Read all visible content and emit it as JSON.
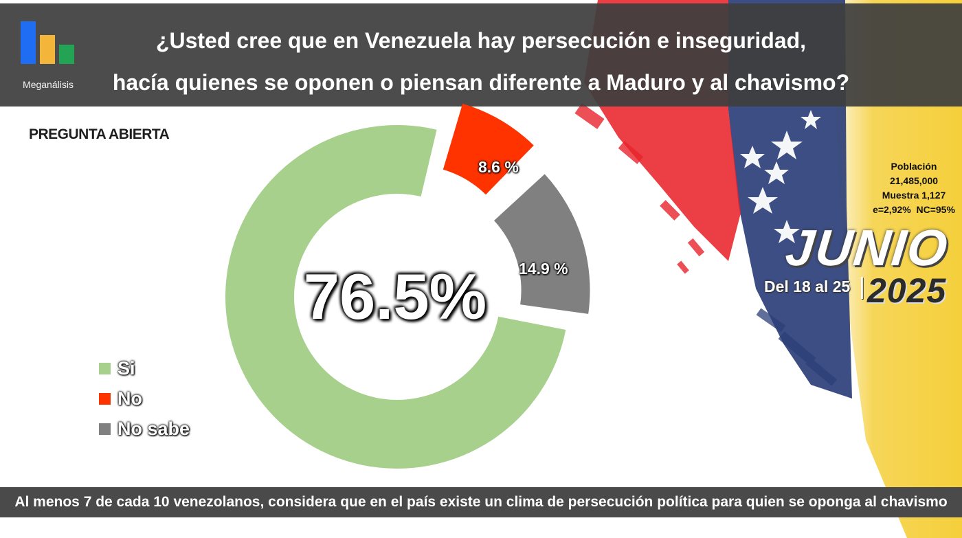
{
  "header": {
    "logo_text": "Meganálisis",
    "title_line1": "¿Usted cree que en Venezuela hay persecución e inseguridad,",
    "title_line2": "hacía quienes se oponen o piensan diferente a Maduro y al chavismo?"
  },
  "subheading": "PREGUNTA ABIERTA",
  "chart_data": {
    "type": "pie",
    "style": "donut, exploded slices",
    "categories": [
      "Si",
      "No",
      "No sabe"
    ],
    "values": [
      76.5,
      8.6,
      14.9
    ],
    "colors": [
      "#a8d08d",
      "#ff3300",
      "#808080"
    ],
    "data_labels": [
      "76.5%",
      "8.6 %",
      "14.9 %"
    ],
    "legend": {
      "entries": [
        "Si",
        "No",
        "No sabe"
      ],
      "placement": "bottom-left"
    }
  },
  "study": {
    "population_label": "Población",
    "population_value": "21,485,000",
    "sample": "Muestra 1,127",
    "error_confidence": "e=2,92%  NC=95%",
    "month": "JUNIO",
    "date_range": "Del 18 al 25",
    "separator": "|",
    "year": "2025"
  },
  "footer_text": "Al menos 7 de cada 10 venezolanos, considera que en el país existe un clima de persecución política para quien se oponga al chavismo",
  "colors": {
    "header_bg": "#3e3e3e",
    "footer_bg": "#4a4a4a",
    "logo_blue": "#1f6df2",
    "logo_yellow": "#f3b63a",
    "logo_green": "#23a455",
    "flag_yellow": "#f5cf3b",
    "flag_blue": "#2b3f78",
    "flag_red": "#e8242b"
  }
}
